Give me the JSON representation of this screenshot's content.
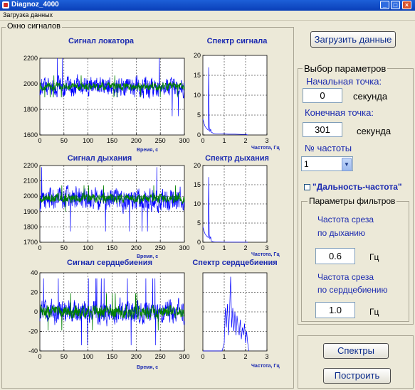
{
  "window": {
    "title": "Diagnoz_4000"
  },
  "menu": {
    "items": [
      "Загрузка данных"
    ]
  },
  "signals_panel": {
    "title": "Окно сигналов"
  },
  "chart_data": [
    {
      "id": "locator_signal",
      "type": "line",
      "title": "Сигнал локатора",
      "xlabel": "Время, с",
      "ylabel": "",
      "xlim": [
        0,
        300
      ],
      "ylim": [
        1600,
        2200
      ],
      "x_ticks": [
        0,
        50,
        100,
        150,
        200,
        250,
        300
      ],
      "y_ticks": [
        1600,
        1800,
        2000,
        2200
      ],
      "grid": true,
      "series": [
        {
          "color": "#0000FF",
          "center": 1975,
          "amplitude": 120
        },
        {
          "color": "#008000",
          "center": 1980,
          "amplitude": 45
        }
      ]
    },
    {
      "id": "locator_spectrum",
      "type": "line",
      "title": "Спектр сигнала",
      "xlabel": "Частота, Гц",
      "ylabel": "",
      "xlim": [
        0,
        3
      ],
      "ylim": [
        0,
        20
      ],
      "x_ticks": [
        0,
        1,
        2,
        3
      ],
      "y_ticks": [
        0,
        5,
        10,
        15,
        20
      ],
      "grid": true,
      "series": [
        {
          "color": "#0000FF",
          "x": [
            0,
            0.05,
            0.1,
            0.15,
            0.2,
            0.25,
            0.27,
            0.3,
            0.33,
            0.36,
            0.4,
            0.5,
            0.6,
            0.8,
            1.0,
            1.2,
            1.5,
            1.8,
            2.0,
            2.1
          ],
          "y": [
            4,
            3,
            2.2,
            1.8,
            1.5,
            1.2,
            17,
            2,
            0.8,
            1.5,
            0.7,
            0.4,
            0.3,
            0.3,
            0.25,
            0.2,
            0.2,
            0.15,
            0.15,
            0
          ]
        }
      ]
    },
    {
      "id": "breath_signal",
      "type": "line",
      "title": "Сигнал дыхания",
      "xlabel": "Время, с",
      "ylabel": "",
      "xlim": [
        0,
        300
      ],
      "ylim": [
        1700,
        2200
      ],
      "x_ticks": [
        0,
        50,
        100,
        150,
        200,
        250,
        300
      ],
      "y_ticks": [
        1700,
        1800,
        1900,
        2000,
        2100,
        2200
      ],
      "grid": true,
      "series": [
        {
          "color": "#0000FF",
          "center": 1980,
          "amplitude": 110
        },
        {
          "color": "#008000",
          "center": 1985,
          "amplitude": 45
        }
      ]
    },
    {
      "id": "breath_spectrum",
      "type": "line",
      "title": "Спектр дыхания",
      "xlabel": "Частота, Гц",
      "ylabel": "",
      "xlim": [
        0,
        3
      ],
      "ylim": [
        0,
        20
      ],
      "x_ticks": [
        0,
        1,
        2,
        3
      ],
      "y_ticks": [
        0,
        5,
        10,
        15,
        20
      ],
      "grid": true,
      "series": [
        {
          "color": "#0000FF",
          "x": [
            0,
            0.05,
            0.1,
            0.15,
            0.2,
            0.25,
            0.27,
            0.3,
            0.33,
            0.36,
            0.4,
            0.5,
            0.6,
            0.8,
            1.0,
            1.5,
            2.0,
            2.1
          ],
          "y": [
            4,
            3,
            2.2,
            1.8,
            1.5,
            1.2,
            17,
            2,
            0.8,
            1.5,
            0.3,
            0.1,
            0.05,
            0.05,
            0.03,
            0.02,
            0.02,
            0
          ]
        }
      ]
    },
    {
      "id": "heart_signal",
      "type": "line",
      "title": "Сигнал сердцебиения",
      "xlabel": "Время, с",
      "ylabel": "",
      "xlim": [
        0,
        300
      ],
      "ylim": [
        -40,
        40
      ],
      "x_ticks": [
        0,
        50,
        100,
        150,
        200,
        250,
        300
      ],
      "y_ticks": [
        -40,
        -20,
        0,
        20,
        40
      ],
      "grid": true,
      "series": [
        {
          "color": "#0000FF",
          "center": 0,
          "amplitude": 18
        },
        {
          "color": "#008000",
          "center": 0,
          "amplitude": 10
        }
      ]
    },
    {
      "id": "heart_spectrum",
      "type": "line",
      "title": "Спектр сердцебиения",
      "xlabel": "Частота, Гц",
      "ylabel": "",
      "xlim": [
        0,
        3
      ],
      "ylim": [
        0,
        1
      ],
      "x_ticks": [
        0,
        1,
        2,
        3
      ],
      "y_ticks": [],
      "grid": true,
      "series": [
        {
          "color": "#0000FF",
          "x": [
            0,
            0.9,
            1.0,
            1.05,
            1.1,
            1.15,
            1.2,
            1.25,
            1.3,
            1.35,
            1.4,
            1.45,
            1.5,
            1.55,
            1.6,
            1.65,
            1.7,
            1.75,
            1.8,
            1.85,
            1.9,
            1.95,
            2.0,
            2.05,
            2.1,
            2.15
          ],
          "y": [
            0,
            0,
            0.1,
            0.55,
            0.3,
            0.6,
            0.2,
            0.5,
            0.95,
            0.3,
            0.55,
            0.25,
            0.5,
            0.2,
            0.45,
            0.3,
            0.2,
            0.4,
            0.15,
            0.3,
            0.2,
            0.35,
            0.1,
            0.25,
            0.1,
            0
          ]
        }
      ]
    }
  ],
  "buttons": {
    "load": "Загрузить данные",
    "spectra": "Спектры",
    "build": "Построить"
  },
  "params": {
    "title": "Выбор параметров",
    "start_label": "Начальная точка:",
    "start_value": "0",
    "start_unit": "секунда",
    "end_label": "Конечная точка:",
    "end_value": "301",
    "end_unit": "секунда",
    "freq_label": "№ частоты",
    "freq_value": "1",
    "checkbox_label": "\"Дальность-частота\""
  },
  "filters": {
    "title": "Параметры фильтров",
    "breath_label_1": "Частота среза",
    "breath_label_2": "по дыханию",
    "breath_value": "0.6",
    "breath_unit": "Гц",
    "heart_label_1": "Частота среза",
    "heart_label_2": "по сердцебиению",
    "heart_value": "1.0",
    "heart_unit": "Гц"
  },
  "colors": {
    "title_bar": "#0A3FB8",
    "window_bg": "#ECE9D8",
    "accent_text": "#1B2AB0"
  }
}
